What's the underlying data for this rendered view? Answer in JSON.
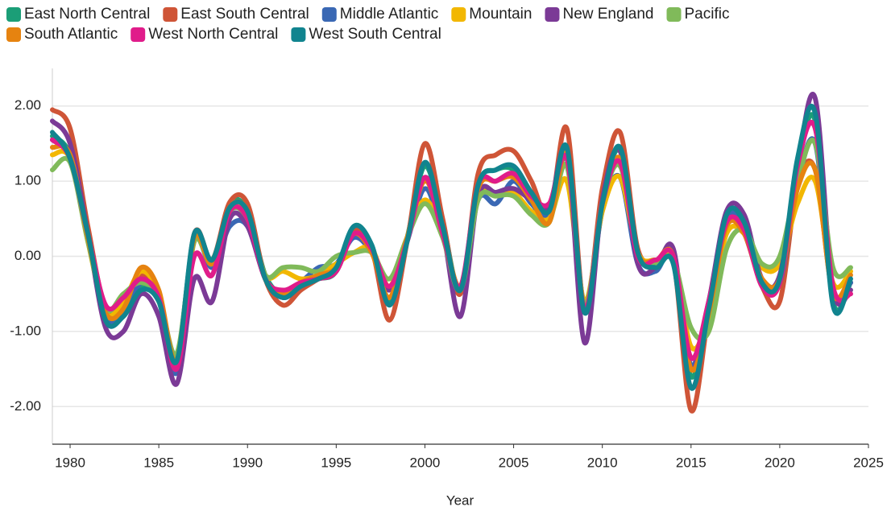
{
  "chart_data": {
    "type": "line",
    "x_label": "Year",
    "x": [
      1979,
      1980,
      1981,
      1982,
      1983,
      1984,
      1985,
      1986,
      1987,
      1988,
      1989,
      1990,
      1991,
      1992,
      1993,
      1994,
      1995,
      1996,
      1997,
      1998,
      1999,
      2000,
      2001,
      2002,
      2003,
      2004,
      2005,
      2006,
      2007,
      2008,
      2009,
      2010,
      2011,
      2012,
      2013,
      2014,
      2015,
      2016,
      2017,
      2018,
      2019,
      2020,
      2021,
      2022,
      2023,
      2024
    ],
    "xlim": [
      1979,
      2025
    ],
    "xticks": [
      1980,
      1985,
      1990,
      1995,
      2000,
      2005,
      2010,
      2015,
      2020,
      2025
    ],
    "ylim": [
      -2.5,
      2.5
    ],
    "yticks": [
      {
        "value": -2,
        "label": "-2.00"
      },
      {
        "value": -1,
        "label": "-1.00"
      },
      {
        "value": 0,
        "label": "0.00"
      },
      {
        "value": 1,
        "label": "1.00"
      },
      {
        "value": 2,
        "label": "2.00"
      }
    ],
    "grid": true,
    "legend": "top",
    "series": [
      {
        "name": "East North Central",
        "color": "#1b9e77",
        "values": [
          1.6,
          1.35,
          0.3,
          -0.8,
          -0.75,
          -0.4,
          -0.6,
          -1.35,
          0.25,
          -0.1,
          0.7,
          0.6,
          -0.25,
          -0.5,
          -0.35,
          -0.3,
          -0.2,
          0.4,
          0.15,
          -0.6,
          0.25,
          1.2,
          0.45,
          -0.45,
          0.95,
          1.15,
          1.15,
          0.8,
          0.55,
          1.4,
          -0.75,
          0.75,
          1.4,
          0.05,
          -0.1,
          -0.05,
          -1.6,
          -0.65,
          0.5,
          0.4,
          -0.35,
          -0.3,
          1.2,
          1.8,
          -0.6,
          -0.35
        ]
      },
      {
        "name": "East South Central",
        "color": "#cf5537",
        "values": [
          1.95,
          1.7,
          0.4,
          -0.7,
          -0.65,
          -0.25,
          -0.55,
          -1.5,
          0.3,
          -0.05,
          0.72,
          0.7,
          -0.3,
          -0.65,
          -0.45,
          -0.3,
          -0.15,
          0.35,
          0.1,
          -0.85,
          0.2,
          1.5,
          0.5,
          -0.5,
          1.1,
          1.35,
          1.4,
          1.0,
          0.55,
          1.7,
          -0.7,
          0.9,
          1.65,
          0.1,
          -0.05,
          -0.05,
          -2.05,
          -0.75,
          0.45,
          0.3,
          -0.4,
          -0.6,
          0.95,
          1.15,
          -0.5,
          -0.35
        ]
      },
      {
        "name": "Middle Atlantic",
        "color": "#3a68b4",
        "values": [
          1.55,
          1.3,
          0.25,
          -0.8,
          -0.8,
          -0.35,
          -0.55,
          -1.55,
          0.2,
          -0.15,
          0.4,
          0.4,
          -0.3,
          -0.55,
          -0.35,
          -0.15,
          -0.1,
          0.25,
          0.05,
          -0.4,
          0.2,
          0.9,
          0.3,
          -0.4,
          0.75,
          0.7,
          1.0,
          0.7,
          0.55,
          1.3,
          -0.65,
          0.6,
          1.05,
          -0.1,
          -0.2,
          0.0,
          -1.45,
          -0.6,
          0.5,
          0.4,
          -0.35,
          -0.35,
          0.95,
          1.5,
          -0.5,
          -0.35
        ]
      },
      {
        "name": "Mountain",
        "color": "#f2b701",
        "values": [
          1.35,
          1.3,
          0.2,
          -0.75,
          -0.6,
          -0.2,
          -0.5,
          -1.45,
          0.2,
          -0.05,
          0.6,
          0.55,
          -0.25,
          -0.2,
          -0.3,
          -0.25,
          -0.1,
          0.05,
          0.1,
          -0.4,
          0.25,
          0.75,
          0.3,
          -0.4,
          0.8,
          0.85,
          0.85,
          0.6,
          0.5,
          1.0,
          -0.6,
          0.6,
          1.05,
          0.05,
          -0.05,
          0.0,
          -1.2,
          -0.8,
          0.3,
          0.3,
          -0.15,
          -0.1,
          0.7,
          1.0,
          -0.35,
          -0.2
        ]
      },
      {
        "name": "New England",
        "color": "#7b3a96",
        "values": [
          1.8,
          1.5,
          0.3,
          -0.95,
          -1.0,
          -0.5,
          -0.8,
          -1.7,
          -0.3,
          -0.6,
          0.5,
          0.4,
          -0.3,
          -0.55,
          -0.4,
          -0.3,
          -0.2,
          0.3,
          0.05,
          -0.45,
          0.2,
          1.05,
          0.35,
          -0.8,
          0.8,
          0.85,
          0.9,
          0.75,
          0.65,
          1.4,
          -1.15,
          0.75,
          1.4,
          -0.1,
          -0.15,
          0.1,
          -1.5,
          -0.6,
          0.6,
          0.55,
          -0.3,
          -0.25,
          1.2,
          2.1,
          -0.45,
          -0.45
        ]
      },
      {
        "name": "Pacific",
        "color": "#80ba5a",
        "values": [
          1.15,
          1.25,
          0.2,
          -0.7,
          -0.5,
          -0.35,
          -0.55,
          -1.3,
          0.2,
          -0.1,
          0.6,
          0.5,
          -0.25,
          -0.15,
          -0.15,
          -0.2,
          0.0,
          0.05,
          0.05,
          -0.3,
          0.25,
          0.7,
          0.25,
          -0.45,
          0.75,
          0.8,
          0.8,
          0.55,
          0.45,
          1.2,
          -0.65,
          0.7,
          1.2,
          0.05,
          -0.1,
          -0.05,
          -0.95,
          -1.0,
          0.1,
          0.35,
          -0.1,
          0.0,
          1.0,
          1.5,
          -0.15,
          -0.15
        ]
      },
      {
        "name": "South Atlantic",
        "color": "#e68310",
        "values": [
          1.45,
          1.35,
          0.25,
          -0.75,
          -0.7,
          -0.15,
          -0.45,
          -1.4,
          0.25,
          -0.1,
          0.65,
          0.6,
          -0.3,
          -0.5,
          -0.35,
          -0.25,
          -0.15,
          0.3,
          0.05,
          -0.55,
          0.25,
          1.0,
          0.35,
          -0.4,
          0.9,
          1.0,
          1.05,
          0.75,
          0.45,
          1.35,
          -0.7,
          0.7,
          1.3,
          0.05,
          -0.05,
          0.0,
          -1.5,
          -0.75,
          0.4,
          0.3,
          -0.3,
          -0.3,
          0.9,
          1.15,
          -0.5,
          -0.25
        ]
      },
      {
        "name": "West North Central",
        "color": "#e01c8a",
        "values": [
          1.55,
          1.3,
          0.3,
          -0.65,
          -0.55,
          -0.3,
          -0.55,
          -1.5,
          0.0,
          -0.25,
          0.6,
          0.5,
          -0.3,
          -0.45,
          -0.35,
          -0.3,
          -0.2,
          0.3,
          0.1,
          -0.4,
          0.2,
          1.05,
          0.3,
          -0.4,
          0.95,
          1.0,
          1.1,
          0.8,
          0.7,
          1.3,
          -0.7,
          0.7,
          1.25,
          0.0,
          -0.05,
          0.0,
          -1.35,
          -0.6,
          0.45,
          0.35,
          -0.4,
          -0.35,
          1.2,
          1.7,
          -0.4,
          -0.5
        ]
      },
      {
        "name": "West South Central",
        "color": "#11848f",
        "values": [
          1.65,
          1.3,
          0.3,
          -0.85,
          -0.8,
          -0.45,
          -0.6,
          -1.4,
          0.3,
          -0.05,
          0.65,
          0.6,
          -0.3,
          -0.55,
          -0.4,
          -0.3,
          -0.15,
          0.4,
          0.15,
          -0.65,
          0.2,
          1.25,
          0.4,
          -0.45,
          0.95,
          1.15,
          1.2,
          0.85,
          0.6,
          1.45,
          -0.75,
          0.7,
          1.45,
          0.05,
          -0.15,
          -0.1,
          -1.75,
          -0.7,
          0.55,
          0.45,
          -0.35,
          -0.3,
          1.3,
          1.9,
          -0.65,
          -0.3
        ]
      }
    ]
  }
}
